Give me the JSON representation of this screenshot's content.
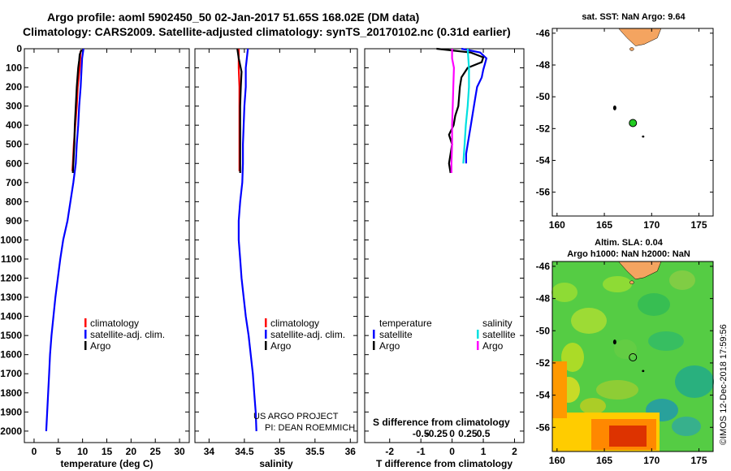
{
  "header": {
    "title_line1": "Argo profile: aoml 5902450_50 02-Jan-2017 51.65S 168.02E (DM data)",
    "title_line2": "Climatology: CARS2009. Satellite-adjusted climatology: synTS_20170102.nc (0.31d earlier)"
  },
  "colors": {
    "climatology": "#ff0000",
    "satellite": "#0000ff",
    "argo": "#000000",
    "satellite_salinity": "#00e0e0",
    "argo_salinity": "#ff00ff",
    "sst_map_bg": "#ffffff",
    "land": "#f4a460",
    "float_marker": "#22cc22"
  },
  "credits": {
    "project": "US ARGO PROJECT",
    "pi": "PI: DEAN ROEMMICH",
    "imos": "©IMOS 12-Dec-2018 17:59:56"
  },
  "chart_data": [
    {
      "type": "line",
      "name": "temperature-profile",
      "xlabel": "temperature (deg C)",
      "ylabel": "",
      "xlim": [
        -2,
        32
      ],
      "ylim": [
        0,
        2060
      ],
      "xticks": [
        0,
        5,
        10,
        15,
        20,
        25,
        30
      ],
      "yticks": [
        0,
        100,
        200,
        300,
        400,
        500,
        600,
        700,
        800,
        900,
        1000,
        1100,
        1200,
        1300,
        1400,
        1500,
        1600,
        1700,
        1800,
        1900,
        2000
      ],
      "legend": [
        "climatology",
        "satellite-adj. clim.",
        "Argo"
      ],
      "series": [
        {
          "name": "satellite-adj. clim.",
          "color": "#0000ff",
          "points": [
            [
              10.2,
              0
            ],
            [
              9.9,
              50
            ],
            [
              9.8,
              100
            ],
            [
              9.6,
              200
            ],
            [
              9.3,
              300
            ],
            [
              9.1,
              400
            ],
            [
              8.8,
              500
            ],
            [
              8.6,
              600
            ],
            [
              8.1,
              700
            ],
            [
              7.5,
              800
            ],
            [
              6.9,
              900
            ],
            [
              6.0,
              1000
            ],
            [
              5.4,
              1100
            ],
            [
              4.9,
              1200
            ],
            [
              4.4,
              1300
            ],
            [
              4.0,
              1400
            ],
            [
              3.6,
              1500
            ],
            [
              3.3,
              1600
            ],
            [
              3.1,
              1700
            ],
            [
              2.9,
              1800
            ],
            [
              2.7,
              1900
            ],
            [
              2.5,
              2000
            ]
          ]
        },
        {
          "name": "climatology",
          "color": "#ff0000",
          "points": [
            [
              9.6,
              10
            ],
            [
              9.4,
              100
            ],
            [
              9.0,
              200
            ],
            [
              8.8,
              300
            ],
            [
              8.5,
              400
            ],
            [
              8.2,
              500
            ],
            [
              8.0,
              600
            ],
            [
              7.9,
              640
            ]
          ]
        },
        {
          "name": "Argo",
          "color": "#000000",
          "points": [
            [
              9.8,
              5
            ],
            [
              9.4,
              30
            ],
            [
              9.3,
              60
            ],
            [
              9.1,
              100
            ],
            [
              8.8,
              200
            ],
            [
              8.6,
              300
            ],
            [
              8.4,
              400
            ],
            [
              8.3,
              500
            ],
            [
              8.1,
              600
            ],
            [
              8.0,
              650
            ]
          ]
        }
      ]
    },
    {
      "type": "line",
      "name": "salinity-profile",
      "xlabel": "salinity",
      "xlim": [
        33.8,
        36.1
      ],
      "ylim": [
        0,
        2060
      ],
      "xticks": [
        34,
        34.5,
        35,
        35.5,
        36
      ],
      "xtick_labels": [
        "34",
        "34.5",
        "35",
        "35.5",
        "36"
      ],
      "legend": [
        "climatology",
        "satellite-adj. clim.",
        "Argo"
      ],
      "series": [
        {
          "name": "satellite-adj. clim.",
          "color": "#0000ff",
          "points": [
            [
              34.55,
              0
            ],
            [
              34.52,
              100
            ],
            [
              34.52,
              200
            ],
            [
              34.5,
              300
            ],
            [
              34.49,
              400
            ],
            [
              34.48,
              500
            ],
            [
              34.48,
              600
            ],
            [
              34.47,
              700
            ],
            [
              34.44,
              800
            ],
            [
              34.42,
              900
            ],
            [
              34.42,
              1000
            ],
            [
              34.44,
              1100
            ],
            [
              34.46,
              1200
            ],
            [
              34.49,
              1300
            ],
            [
              34.52,
              1400
            ],
            [
              34.56,
              1500
            ],
            [
              34.59,
              1600
            ],
            [
              34.62,
              1700
            ],
            [
              34.64,
              1800
            ],
            [
              34.66,
              1900
            ],
            [
              34.67,
              2000
            ]
          ]
        },
        {
          "name": "climatology",
          "color": "#ff0000",
          "points": [
            [
              34.42,
              0
            ],
            [
              34.42,
              100
            ],
            [
              34.43,
              200
            ],
            [
              34.43,
              300
            ],
            [
              34.43,
              400
            ],
            [
              34.43,
              500
            ],
            [
              34.43,
              600
            ],
            [
              34.43,
              640
            ]
          ]
        },
        {
          "name": "Argo",
          "color": "#000000",
          "points": [
            [
              34.4,
              0
            ],
            [
              34.42,
              50
            ],
            [
              34.46,
              120
            ],
            [
              34.45,
              200
            ],
            [
              34.44,
              300
            ],
            [
              34.44,
              400
            ],
            [
              34.44,
              500
            ],
            [
              34.44,
              600
            ],
            [
              34.44,
              650
            ]
          ]
        }
      ]
    },
    {
      "type": "line",
      "name": "difference-profile",
      "xlabel": "T difference from climatology",
      "xlabel2": "S difference from climatology",
      "xlim": [
        -2.8,
        2.3
      ],
      "ylim": [
        0,
        2060
      ],
      "xticks": [
        -2,
        -1,
        0,
        1,
        2
      ],
      "xtick_labels": [
        "-2",
        "-1",
        "0",
        "1",
        "2"
      ],
      "sticks": [
        -0.5,
        -0.25,
        0,
        0.25,
        0.5
      ],
      "stick_labels": [
        "-0.5",
        "-0.25",
        "0",
        "0.25",
        "0.5"
      ],
      "legend_titles": [
        "temperature",
        "salinity"
      ],
      "legend_left": [
        "satellite",
        "Argo"
      ],
      "legend_right": [
        "satellite",
        "Argo"
      ],
      "series": [
        {
          "name": "T satellite",
          "color": "#0000ff",
          "points": [
            [
              0.3,
              0
            ],
            [
              0.9,
              20
            ],
            [
              1.1,
              50
            ],
            [
              1.05,
              80
            ],
            [
              1.0,
              110
            ],
            [
              0.95,
              150
            ],
            [
              0.8,
              200
            ],
            [
              0.75,
              250
            ],
            [
              0.7,
              300
            ],
            [
              0.6,
              400
            ],
            [
              0.5,
              500
            ],
            [
              0.45,
              550
            ],
            [
              0.45,
              600
            ]
          ]
        },
        {
          "name": "T Argo",
          "color": "#000000",
          "points": [
            [
              -0.5,
              0
            ],
            [
              0.6,
              20
            ],
            [
              1.0,
              45
            ],
            [
              0.95,
              70
            ],
            [
              0.5,
              100
            ],
            [
              0.3,
              150
            ],
            [
              0.25,
              200
            ],
            [
              0.2,
              300
            ],
            [
              0.1,
              350
            ],
            [
              0.05,
              400
            ],
            [
              -0.1,
              450
            ],
            [
              0.0,
              500
            ],
            [
              -0.05,
              550
            ],
            [
              -0.1,
              600
            ],
            [
              -0.05,
              650
            ]
          ]
        },
        {
          "name": "S satellite",
          "color": "#00e0e0",
          "points": [
            [
              0.25,
              0
            ],
            [
              0.27,
              100
            ],
            [
              0.27,
              200
            ],
            [
              0.25,
              300
            ],
            [
              0.22,
              400
            ],
            [
              0.2,
              500
            ],
            [
              0.18,
              600
            ]
          ]
        },
        {
          "name": "S Argo",
          "color": "#ff00ff",
          "points": [
            [
              0.0,
              0
            ],
            [
              0.0,
              50
            ],
            [
              0.03,
              100
            ],
            [
              0.02,
              200
            ],
            [
              0.01,
              300
            ],
            [
              0.0,
              400
            ],
            [
              0.0,
              500
            ],
            [
              -0.01,
              600
            ],
            [
              -0.01,
              650
            ]
          ]
        }
      ]
    }
  ],
  "sst_map": {
    "title": "sat. SST: NaN Argo: 9.64",
    "lat_ticks": [
      "-46",
      "-48",
      "-50",
      "-52",
      "-54",
      "-56"
    ],
    "lon_ticks": [
      "160",
      "165",
      "170",
      "175"
    ],
    "lon_range": [
      159.5,
      176.5
    ],
    "lat_range": [
      -57.5,
      -45.7
    ],
    "float_position": [
      168.02,
      -51.65
    ]
  },
  "ssh_map": {
    "title_line1": "Altim. SLA: 0.04",
    "title_line2": "Argo h1000: NaN h2000: NaN",
    "lat_ticks": [
      "-46",
      "-48",
      "-50",
      "-52",
      "-54",
      "-56"
    ],
    "lon_ticks": [
      "160",
      "165",
      "170",
      "175"
    ],
    "lon_range": [
      159.5,
      176.5
    ],
    "lat_range": [
      -57.5,
      -45.7
    ],
    "float_position": [
      168.02,
      -51.65
    ]
  }
}
